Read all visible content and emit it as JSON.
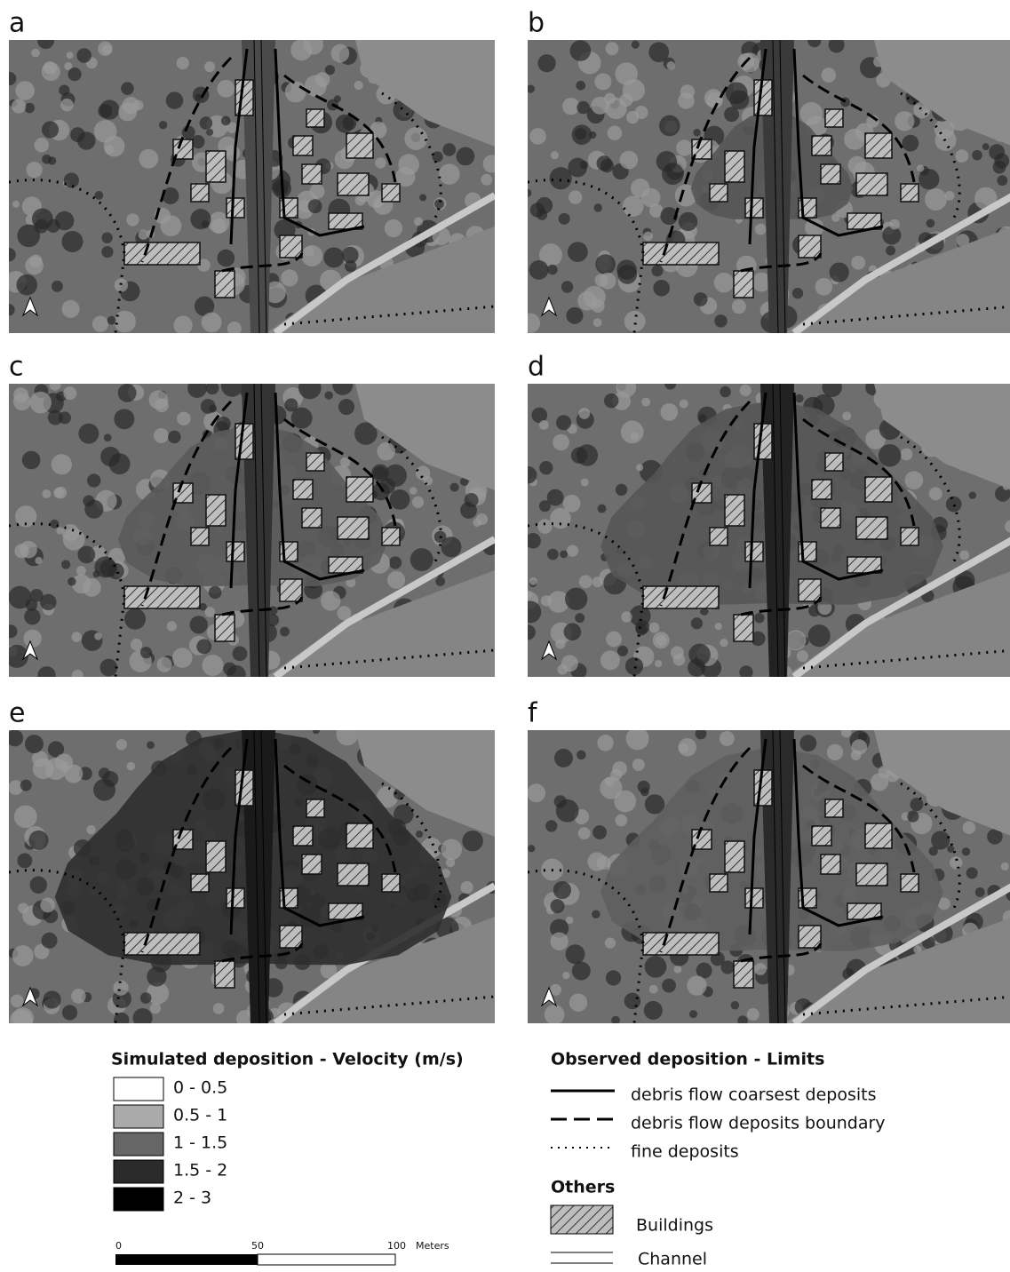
{
  "panels": [
    {
      "label": "a"
    },
    {
      "label": "b"
    },
    {
      "label": "c"
    },
    {
      "label": "d"
    },
    {
      "label": "e"
    },
    {
      "label": "f"
    }
  ],
  "velocity_legend": {
    "title": "Simulated deposition - Velocity (m/s)",
    "classes": [
      "0 - 0.5",
      "0.5 - 1",
      "1 - 1.5",
      "1.5 - 2",
      "2 - 3"
    ]
  },
  "scale_bar": {
    "ticks": [
      0,
      50,
      100
    ],
    "unit": "Meters"
  },
  "limits_legend": {
    "title": "Observed deposition - Limits",
    "items": [
      "debris flow coarsest deposits",
      "debris flow deposits boundary",
      "fine deposits"
    ]
  },
  "others_legend": {
    "title": "Others",
    "items": [
      "Buildings",
      "Channel"
    ]
  }
}
